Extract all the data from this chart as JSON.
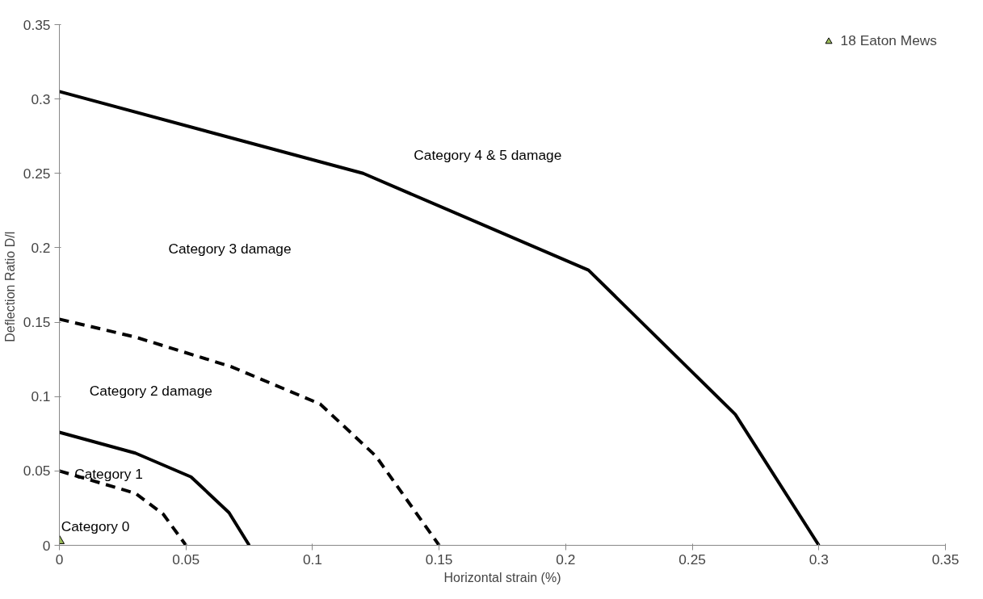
{
  "chart_data": {
    "type": "line",
    "xlabel": "Horizontal strain (%)",
    "ylabel": "Deflection Ratio  D/l",
    "xlim": [
      0,
      0.35
    ],
    "ylim": [
      0,
      0.35
    ],
    "xticks": [
      0,
      0.05,
      0.1,
      0.15,
      0.2,
      0.25,
      0.3,
      0.35
    ],
    "yticks": [
      0,
      0.05,
      0.1,
      0.15,
      0.2,
      0.25,
      0.3,
      0.35
    ],
    "grid": false,
    "legend": "top right",
    "series": [
      {
        "color": "#000000",
        "line_style": "solid",
        "x": [
          0,
          0.12,
          0.209,
          0.267,
          0.3
        ],
        "values": [
          0.305,
          0.25,
          0.185,
          0.088,
          0
        ]
      },
      {
        "color": "#000000",
        "line_style": "dashed",
        "x": [
          0,
          0.03,
          0.068,
          0.103,
          0.125,
          0.15
        ],
        "values": [
          0.152,
          0.14,
          0.12,
          0.095,
          0.06,
          0
        ]
      },
      {
        "color": "#000000",
        "line_style": "solid",
        "x": [
          0,
          0.03,
          0.052,
          0.067,
          0.075
        ],
        "values": [
          0.076,
          0.062,
          0.046,
          0.022,
          0
        ]
      },
      {
        "color": "#000000",
        "line_style": "dashed",
        "x": [
          0,
          0.03,
          0.041,
          0.05
        ],
        "values": [
          0.05,
          0.035,
          0.021,
          0
        ]
      },
      {
        "type": "scatter",
        "name": "18 Eaton Mews",
        "color": "#9bbb59",
        "marker": "triangle",
        "x": [
          0
        ],
        "values": [
          0.003
        ]
      }
    ],
    "annotations": [
      "Category 4 & 5 damage",
      "Category 3 damage",
      "Category 2 damage",
      "Category  1",
      "Category  0"
    ]
  }
}
